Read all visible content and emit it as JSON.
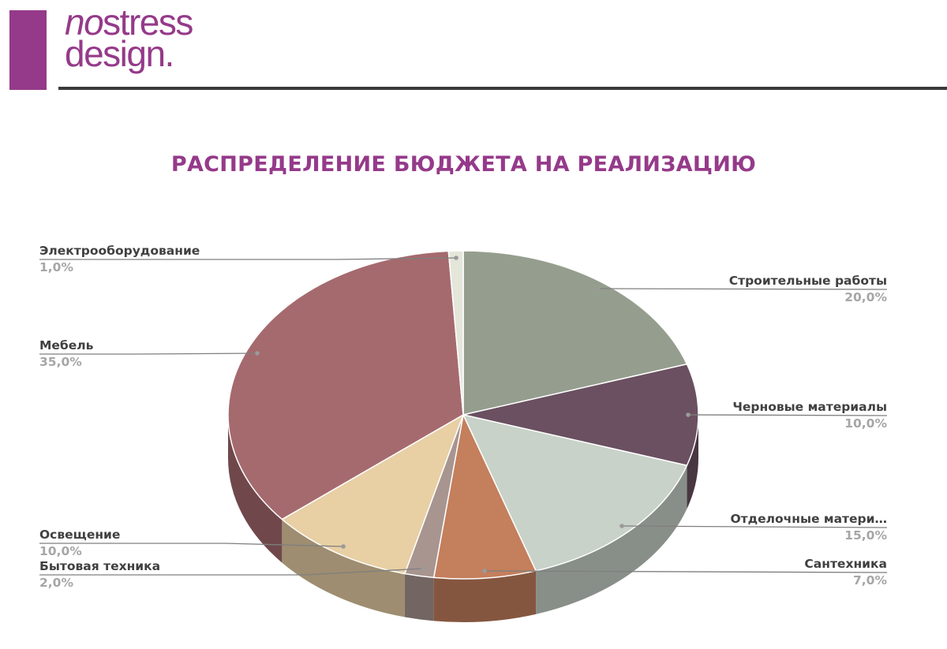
{
  "logo": {
    "line1_italic": "no",
    "line1_rest": "stress",
    "line2": "design."
  },
  "colors": {
    "brand": "#953a8a",
    "rule": "#3a3a3a"
  },
  "chart_data": {
    "type": "pie",
    "title": "РАСПРЕДЕЛЕНИЕ БЮДЖЕТА НА РЕАЛИЗАЦИЮ",
    "slices": [
      {
        "label": "Строительные работы",
        "value": 20.0,
        "display": "20,0%",
        "color": "#959e8e"
      },
      {
        "label": "Черновые материалы",
        "value": 10.0,
        "display": "10,0%",
        "color": "#6a5060"
      },
      {
        "label": "Отделочные матери…",
        "value": 15.0,
        "display": "15,0%",
        "color": "#c8d2c8"
      },
      {
        "label": "Сантехника",
        "value": 7.0,
        "display": "7,0%",
        "color": "#c47f5c"
      },
      {
        "label": "Бытовая техника",
        "value": 2.0,
        "display": "2,0%",
        "color": "#a89590"
      },
      {
        "label": "Освещение",
        "value": 10.0,
        "display": "10,0%",
        "color": "#e8cfa4"
      },
      {
        "label": "Мебель",
        "value": 35.0,
        "display": "35,0%",
        "color": "#a56a6e"
      },
      {
        "label": "Электрооборудование",
        "value": 1.0,
        "display": "1,0%",
        "color": "#e5e6da"
      }
    ]
  }
}
